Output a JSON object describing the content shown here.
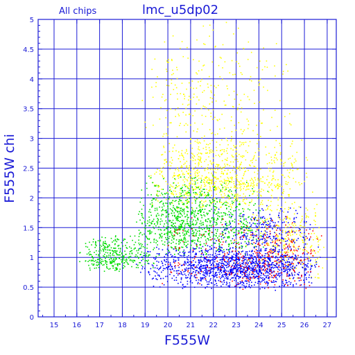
{
  "chart_data": {
    "type": "scatter",
    "title": "lmc_u5dp02",
    "subtitle": "All chips",
    "xlabel": "F555W",
    "ylabel": "F555W chi",
    "xlim": [
      14.3,
      27.4
    ],
    "ylim": [
      0,
      5
    ],
    "x_ticks": [
      15,
      16,
      17,
      18,
      19,
      20,
      21,
      22,
      23,
      24,
      25,
      26,
      27
    ],
    "y_ticks": [
      0,
      0.5,
      1,
      1.5,
      2,
      2.5,
      3,
      3.5,
      4,
      4.5,
      5
    ],
    "x_tick_labels": [
      "15",
      "16",
      "17",
      "18",
      "19",
      "20",
      "21",
      "22",
      "23",
      "24",
      "25",
      "26",
      "27"
    ],
    "y_tick_labels": [
      "0",
      "0.5",
      "1",
      "1.5",
      "2",
      "2.5",
      "3",
      "3.5",
      "4",
      "4.5",
      "5"
    ],
    "grid": true,
    "colors": {
      "axis": "#1a1ad6",
      "grid": "#1a1ad6",
      "background": "#ffffff"
    },
    "series": [
      {
        "color": "#ffff00",
        "clusters": [
          {
            "x_range": [
              19.0,
              26.5
            ],
            "y_range": [
              1.8,
              3.2
            ],
            "x_peak": 21.5,
            "y_peak": 2.2,
            "count": 900
          },
          {
            "x_range": [
              18.8,
              26.0
            ],
            "y_range": [
              3.0,
              5.0
            ],
            "x_peak": 21.0,
            "y_peak": 3.3,
            "count": 260
          },
          {
            "x_range": [
              22.5,
              27.0
            ],
            "y_range": [
              0.6,
              2.0
            ],
            "x_peak": 25.5,
            "y_peak": 1.3,
            "count": 320
          }
        ]
      },
      {
        "color": "#00dd00",
        "clusters": [
          {
            "x_range": [
              16.0,
              19.5
            ],
            "y_range": [
              0.75,
              1.4
            ],
            "x_peak": 17.5,
            "y_peak": 0.95,
            "count": 350
          },
          {
            "x_range": [
              18.5,
              24.5
            ],
            "y_range": [
              1.0,
              2.4
            ],
            "x_peak": 20.5,
            "y_peak": 1.5,
            "count": 1000
          }
        ]
      },
      {
        "color": "#0000ff",
        "clusters": [
          {
            "x_range": [
              18.5,
              26.8
            ],
            "y_range": [
              0.45,
              1.25
            ],
            "x_peak": 23.5,
            "y_peak": 0.85,
            "count": 1400
          },
          {
            "x_range": [
              22.0,
              26.5
            ],
            "y_range": [
              1.2,
              1.9
            ],
            "x_peak": 24.5,
            "y_peak": 1.3,
            "count": 220
          }
        ]
      },
      {
        "color": "#ff0000",
        "clusters": [
          {
            "x_range": [
              19.5,
              26.8
            ],
            "y_range": [
              0.45,
              1.8
            ],
            "x_peak": 25.0,
            "y_peak": 0.85,
            "count": 350
          }
        ]
      }
    ]
  }
}
